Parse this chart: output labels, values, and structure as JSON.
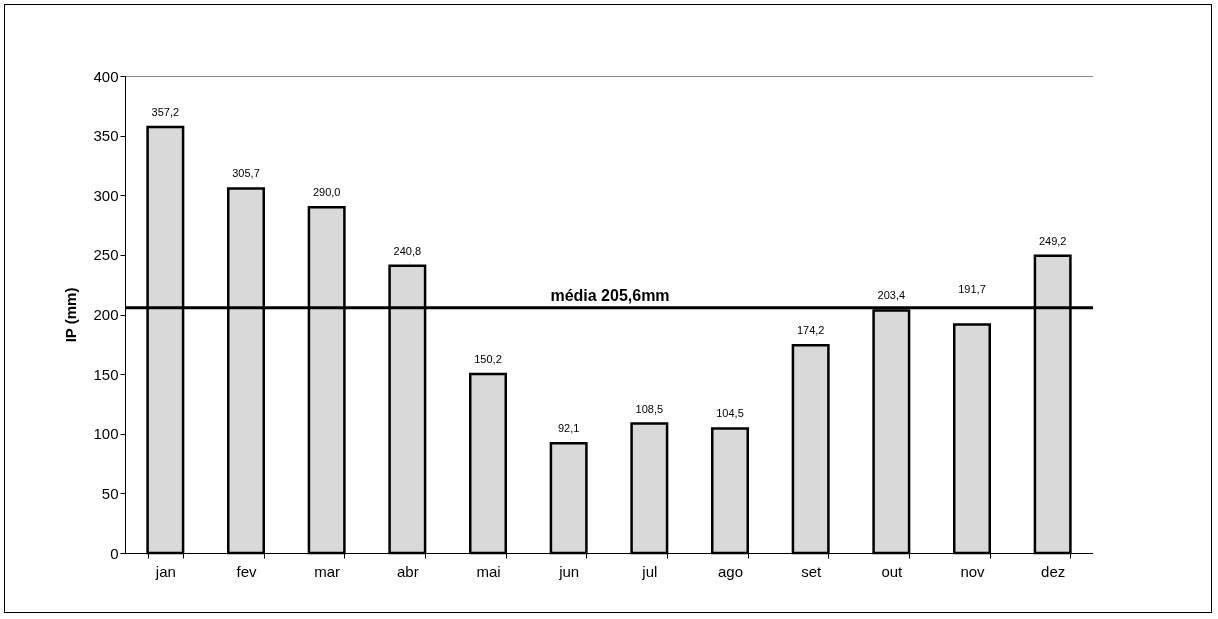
{
  "chart_data": {
    "type": "bar",
    "ylabel": "IP (mm)",
    "categories": [
      "jan",
      "fev",
      "mar",
      "abr",
      "mai",
      "jun",
      "jul",
      "ago",
      "set",
      "out",
      "nov",
      "dez"
    ],
    "values": [
      357.2,
      305.7,
      290.0,
      240.8,
      150.2,
      92.1,
      108.5,
      104.5,
      174.2,
      203.4,
      191.7,
      249.2
    ],
    "value_labels": [
      "357,2",
      "305,7",
      "290,0",
      "240,8",
      "150,2",
      "92,1",
      "108,5",
      "104,5",
      "174,2",
      "203,4",
      "191,7",
      "249,2"
    ],
    "color": "#d9d9d9",
    "ylim": [
      0,
      400
    ],
    "yticks": [
      0,
      50,
      100,
      150,
      200,
      250,
      300,
      350,
      400
    ],
    "ref_lines": [
      {
        "axis": "y",
        "value": 205.6,
        "label": "média 205,6mm",
        "color": "#000000"
      }
    ]
  }
}
